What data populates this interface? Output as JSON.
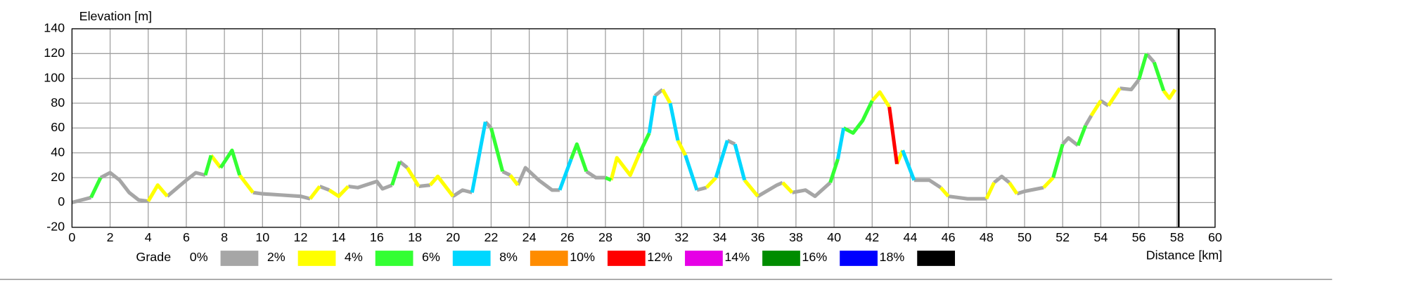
{
  "chart_data": {
    "type": "line",
    "y_label": "Elevation [m]",
    "x_label": "Distance [km]",
    "legend_title": "Grade",
    "xlim": [
      0,
      60
    ],
    "xticks": [
      0,
      2,
      4,
      6,
      8,
      10,
      12,
      14,
      16,
      18,
      20,
      22,
      24,
      26,
      28,
      30,
      32,
      34,
      36,
      38,
      40,
      42,
      44,
      46,
      48,
      50,
      52,
      54,
      56,
      58,
      60
    ],
    "ylim": [
      -20,
      140
    ],
    "yticks": [
      -20,
      0,
      20,
      40,
      60,
      80,
      100,
      120,
      140
    ],
    "grid": true,
    "series": [
      {
        "name": "0%",
        "color": "#a6a6a6",
        "x": [
          0,
          0.5,
          1,
          null,
          1.5,
          2,
          2.5,
          3,
          3.5,
          4,
          null,
          5,
          6,
          6.5,
          7,
          null,
          9.5,
          10,
          11,
          12,
          12.5,
          null,
          13,
          13.5,
          null,
          14.5,
          15,
          16,
          16.3,
          16.8,
          null,
          17.2,
          17.6,
          null,
          18.2,
          18.8,
          null,
          20,
          20.5,
          21,
          null,
          21.7,
          22,
          null,
          22.6,
          23,
          null,
          23.4,
          23.8,
          24.5,
          25.2,
          25.6,
          null,
          27,
          27.5,
          28,
          null,
          30.6,
          31,
          null,
          32.8,
          33.3,
          null,
          34.4,
          34.8,
          null,
          36,
          37,
          37.3,
          null,
          37.8,
          38.5,
          39,
          39.8,
          null,
          44.2,
          45,
          45.6,
          null,
          46,
          47,
          48,
          null,
          48.4,
          48.8,
          49.2,
          null,
          49.6,
          50,
          51,
          null,
          52,
          52.3,
          52.8,
          null,
          53.2,
          53.5,
          null,
          54,
          54.4,
          null,
          55,
          55.6,
          56,
          null,
          56.4,
          56.8
        ],
        "values": [
          0,
          2,
          4,
          null,
          20,
          24,
          18,
          8,
          2,
          1,
          null,
          5,
          18,
          24,
          22,
          null,
          8,
          7,
          6,
          5,
          3,
          null,
          13,
          10,
          null,
          13,
          12,
          17,
          11,
          14,
          null,
          33,
          28,
          null,
          13,
          14,
          null,
          5,
          10,
          8,
          null,
          65,
          60,
          null,
          25,
          22,
          null,
          14,
          28,
          18,
          10,
          10,
          null,
          25,
          20,
          20,
          null,
          86,
          91,
          null,
          10,
          12,
          null,
          50,
          47,
          null,
          5,
          14,
          16,
          null,
          8,
          10,
          5,
          16,
          null,
          18,
          18,
          12,
          null,
          5,
          3,
          3,
          null,
          16,
          21,
          16,
          null,
          7,
          9,
          12,
          null,
          47,
          52,
          46,
          null,
          62,
          70,
          null,
          82,
          78,
          null,
          92,
          91,
          99,
          null,
          120,
          113
        ]
      },
      {
        "name": "2%",
        "color": "#ffff00",
        "x": [
          4,
          4.5,
          5,
          null,
          7.3,
          7.8,
          null,
          8.8,
          9.5,
          null,
          12.5,
          13,
          null,
          13.5,
          14,
          14.5,
          null,
          17.6,
          18.2,
          null,
          18.8,
          19.2,
          20,
          null,
          23,
          23.4,
          null,
          28.3,
          28.6,
          29.3,
          29.8,
          null,
          31,
          31.4,
          null,
          31.8,
          32.2,
          null,
          33.3,
          33.8,
          null,
          35.3,
          36,
          null,
          37.3,
          37.8,
          null,
          42,
          42.4,
          42.9,
          null,
          43.3,
          43.6,
          null,
          45.6,
          46,
          null,
          48,
          48.4,
          null,
          49.2,
          49.6,
          null,
          51,
          51.5,
          null,
          53.5,
          54,
          null,
          54.4,
          55,
          null,
          57.3,
          57.6,
          57.9
        ],
        "values": [
          1,
          14,
          5,
          null,
          38,
          28,
          null,
          22,
          8,
          null,
          3,
          13,
          null,
          10,
          5,
          13,
          null,
          28,
          13,
          null,
          14,
          21,
          5,
          null,
          22,
          14,
          null,
          18,
          36,
          22,
          40,
          null,
          91,
          80,
          null,
          50,
          38,
          null,
          12,
          20,
          null,
          18,
          5,
          null,
          16,
          8,
          null,
          82,
          89,
          77,
          null,
          31,
          42,
          null,
          12,
          5,
          null,
          3,
          16,
          null,
          16,
          7,
          null,
          12,
          20,
          null,
          70,
          82,
          null,
          78,
          92,
          null,
          90,
          84,
          91
        ]
      },
      {
        "name": "4%",
        "color": "#33ff33",
        "x": [
          1,
          1.5,
          null,
          7,
          7.3,
          null,
          7.8,
          8.4,
          8.8,
          null,
          16.8,
          17.2,
          null,
          22,
          22.6,
          null,
          26.2,
          26.5,
          27,
          null,
          28,
          28.3,
          null,
          29.8,
          30.3,
          null,
          39.8,
          40.2,
          null,
          40.5,
          41,
          41.5,
          42,
          null,
          51.5,
          52,
          null,
          52.8,
          53.2,
          null,
          56,
          56.4,
          null,
          56.8,
          57.3
        ],
        "values": [
          4,
          20,
          null,
          22,
          38,
          null,
          28,
          42,
          22,
          null,
          14,
          33,
          null,
          60,
          25,
          null,
          35,
          47,
          25,
          null,
          20,
          18,
          null,
          40,
          56,
          null,
          16,
          35,
          null,
          60,
          56,
          66,
          82,
          null,
          20,
          47,
          null,
          46,
          62,
          null,
          99,
          120,
          null,
          113,
          90
        ]
      },
      {
        "name": "6%",
        "color": "#00d7ff",
        "x": [
          21,
          21.7,
          null,
          25.6,
          26.2,
          null,
          30.3,
          30.6,
          null,
          31.4,
          31.8,
          null,
          32.2,
          32.8,
          null,
          33.8,
          34.4,
          null,
          34.8,
          35.3,
          null,
          40.2,
          40.5,
          null,
          43.6,
          44.2
        ],
        "values": [
          8,
          65,
          null,
          10,
          35,
          null,
          56,
          86,
          null,
          80,
          50,
          null,
          38,
          10,
          null,
          20,
          50,
          null,
          47,
          18,
          null,
          35,
          60,
          null,
          42,
          18
        ]
      },
      {
        "name": "8%",
        "color": "#ff8c00",
        "x": [],
        "values": []
      },
      {
        "name": "10%",
        "color": "#ff0000",
        "x": [
          42.9,
          43.3
        ],
        "values": [
          77,
          31
        ]
      },
      {
        "name": "12%",
        "color": "#e600e6",
        "x": [],
        "values": []
      },
      {
        "name": "14%",
        "color": "#008c00",
        "x": [],
        "values": []
      },
      {
        "name": "16%",
        "color": "#0000ff",
        "x": [],
        "values": []
      },
      {
        "name": "18%",
        "color": "#000000",
        "x": [],
        "values": []
      }
    ]
  }
}
